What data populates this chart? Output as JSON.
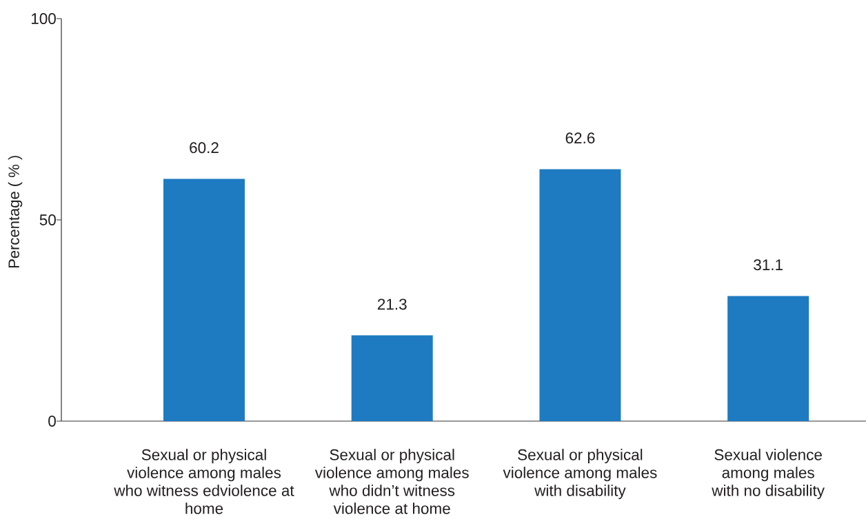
{
  "chart_data": {
    "type": "bar",
    "ylabel": "Percentage ( % )",
    "categories": [
      "Sexual or physical violence among males who witness edviolence at home",
      "Sexual or physical violence among males who didn’t witness violence at home",
      "Sexual or physical violence among males with disability",
      "Sexual violence among males with no disability"
    ],
    "values": [
      60.2,
      21.3,
      62.6,
      31.1
    ],
    "color": "#1e7bc1",
    "ylim": [
      0,
      100
    ],
    "yticks": [
      0,
      50,
      100
    ],
    "data_labels": true
  }
}
